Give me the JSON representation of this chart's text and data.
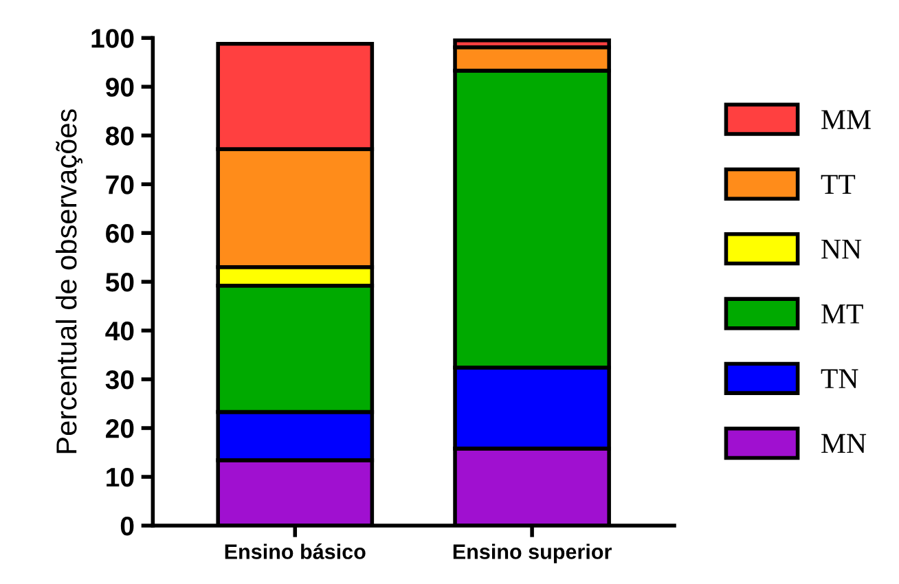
{
  "chart_data": {
    "type": "bar",
    "stacked": true,
    "ylabel": "Percentual de observações",
    "categories": [
      "Ensino básico",
      "Ensino superior"
    ],
    "series": [
      {
        "name": "MN",
        "color": "#a010d0",
        "values": [
          13.4,
          15.8
        ]
      },
      {
        "name": "TN",
        "color": "#0000ff",
        "values": [
          9.9,
          16.6
        ]
      },
      {
        "name": "MT",
        "color": "#00aa00",
        "values": [
          25.9,
          60.9
        ]
      },
      {
        "name": "NN",
        "color": "#ffff00",
        "values": [
          3.8,
          0
        ]
      },
      {
        "name": "TT",
        "color": "#ff8c1a",
        "values": [
          24.2,
          4.8
        ]
      },
      {
        "name": "MM",
        "color": "#ff4040",
        "values": [
          21.6,
          1.4
        ]
      }
    ],
    "ylim": [
      0,
      100
    ],
    "yticks": [
      0,
      10,
      20,
      30,
      40,
      50,
      60,
      70,
      80,
      90,
      100
    ],
    "grid": false,
    "legend": "right"
  }
}
